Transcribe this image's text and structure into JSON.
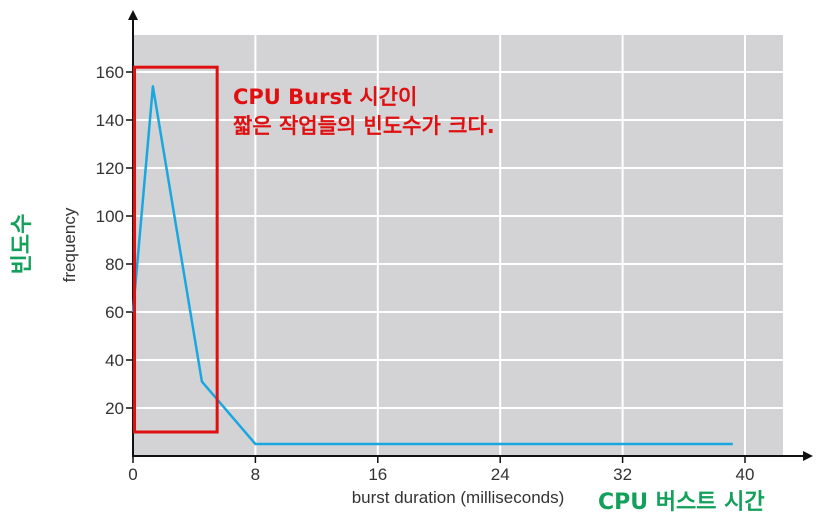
{
  "chart_data": {
    "type": "line",
    "xlabel": "burst duration (milliseconds)",
    "ylabel": "frequency",
    "xlim": [
      0,
      42
    ],
    "ylim": [
      0,
      175
    ],
    "x_ticks": [
      "0",
      "8",
      "16",
      "24",
      "32",
      "40"
    ],
    "y_ticks": [
      "20",
      "40",
      "60",
      "80",
      "100",
      "120",
      "140",
      "160"
    ],
    "grid": true,
    "series": [
      {
        "x": [
          0,
          1.3,
          4.5,
          8,
          39.2
        ],
        "y": [
          60,
          154,
          31,
          5,
          5
        ]
      }
    ],
    "highlight": {
      "x_range": [
        0.1,
        5.5
      ],
      "y_range": [
        10,
        162
      ]
    },
    "annotations": {
      "highlight_note": [
        "CPU Burst 시간이",
        "짧은 작업들의 빈도수가 크다."
      ],
      "x_axis_note": "CPU 버스트 시간",
      "y_axis_note": "빈도수"
    }
  },
  "colors": {
    "plot_background": "#d3d3d6",
    "grid": "#ffffff",
    "line": "#1aa7e0",
    "axis": "#111111",
    "highlight_box": "#e01010",
    "annotation_red": "#e01010",
    "annotation_green": "#12a05a"
  }
}
